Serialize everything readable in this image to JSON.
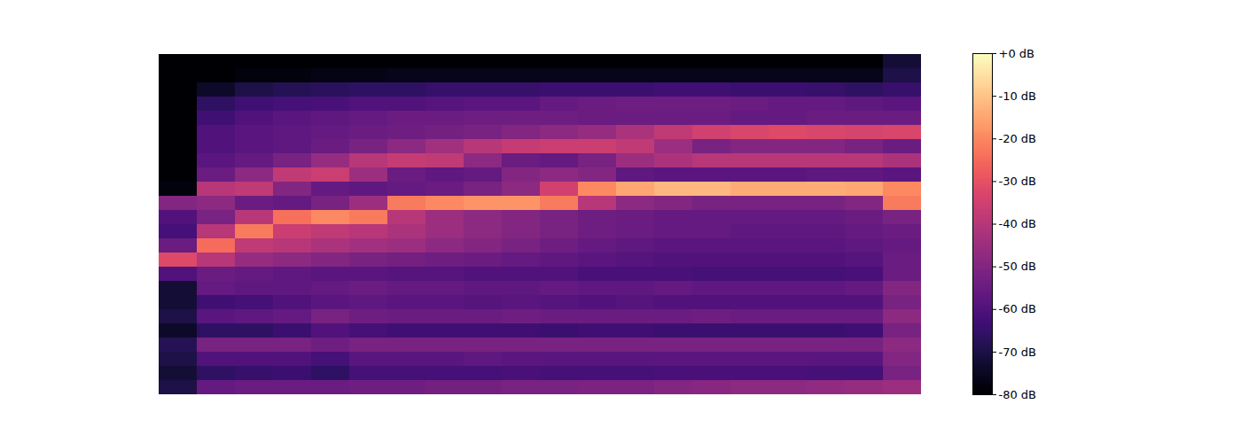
{
  "chart_data": {
    "type": "heatmap",
    "color": "magma",
    "tick_labels": false,
    "colorbar": {
      "range": [
        -80,
        0
      ],
      "ticks": [
        {
          "value": 0,
          "label": "+0 dB"
        },
        {
          "value": -10,
          "label": "-10 dB"
        },
        {
          "value": -20,
          "label": "-20 dB"
        },
        {
          "value": -30,
          "label": "-30 dB"
        },
        {
          "value": -40,
          "label": "-40 dB"
        },
        {
          "value": -50,
          "label": "-50 dB"
        },
        {
          "value": -60,
          "label": "-60 dB"
        },
        {
          "value": -70,
          "label": "-70 dB"
        },
        {
          "value": -80,
          "label": "-80 dB"
        }
      ]
    },
    "cells": [
      [
        -80,
        -80,
        -80,
        -80,
        -80,
        -80,
        -80,
        -80,
        -80,
        -80,
        -80,
        -80,
        -80,
        -80,
        -80,
        -80,
        -80,
        -80,
        -80,
        -72
      ],
      [
        -80,
        -80,
        -78,
        -78,
        -77,
        -77,
        -76,
        -76,
        -76,
        -76,
        -76,
        -76,
        -76,
        -76,
        -76,
        -76,
        -76,
        -76,
        -76,
        -70
      ],
      [
        -80,
        -74,
        -70,
        -68,
        -67,
        -66,
        -66,
        -65,
        -65,
        -65,
        -64,
        -64,
        -64,
        -63,
        -63,
        -64,
        -64,
        -65,
        -66,
        -65
      ],
      [
        -80,
        -66,
        -63,
        -62,
        -61,
        -60,
        -60,
        -59,
        -58,
        -58,
        -56,
        -55,
        -54,
        -54,
        -54,
        -55,
        -56,
        -56,
        -57,
        -58
      ],
      [
        -80,
        -63,
        -60,
        -58,
        -57,
        -56,
        -55,
        -55,
        -54,
        -54,
        -54,
        -55,
        -55,
        -55,
        -55,
        -56,
        -56,
        -55,
        -55,
        -55
      ],
      [
        -80,
        -60,
        -58,
        -57,
        -56,
        -55,
        -54,
        -53,
        -52,
        -50,
        -48,
        -46,
        -42,
        -38,
        -35,
        -33,
        -32,
        -33,
        -34,
        -33
      ],
      [
        -80,
        -60,
        -58,
        -57,
        -55,
        -52,
        -48,
        -44,
        -40,
        -37,
        -36,
        -36,
        -38,
        -45,
        -52,
        -50,
        -50,
        -50,
        -52,
        -55
      ],
      [
        -80,
        -58,
        -56,
        -52,
        -46,
        -40,
        -37,
        -38,
        -48,
        -55,
        -56,
        -52,
        -45,
        -42,
        -40,
        -40,
        -40,
        -40,
        -40,
        -42
      ],
      [
        -80,
        -55,
        -48,
        -38,
        -36,
        -45,
        -55,
        -57,
        -56,
        -50,
        -48,
        -50,
        -57,
        -58,
        -58,
        -58,
        -58,
        -57,
        -57,
        -58
      ],
      [
        -78,
        -40,
        -38,
        -50,
        -56,
        -57,
        -56,
        -55,
        -52,
        -48,
        -35,
        -20,
        -15,
        -12,
        -12,
        -14,
        -14,
        -14,
        -15,
        -20
      ],
      [
        -50,
        -48,
        -55,
        -56,
        -52,
        -45,
        -22,
        -20,
        -18,
        -18,
        -22,
        -40,
        -48,
        -50,
        -52,
        -52,
        -52,
        -52,
        -50,
        -22
      ],
      [
        -60,
        -52,
        -40,
        -24,
        -20,
        -22,
        -40,
        -45,
        -48,
        -50,
        -52,
        -54,
        -55,
        -56,
        -56,
        -56,
        -56,
        -56,
        -55,
        -52
      ],
      [
        -62,
        -40,
        -22,
        -36,
        -38,
        -40,
        -42,
        -45,
        -48,
        -50,
        -52,
        -54,
        -55,
        -56,
        -56,
        -57,
        -57,
        -57,
        -56,
        -55
      ],
      [
        -55,
        -25,
        -38,
        -40,
        -42,
        -44,
        -45,
        -48,
        -50,
        -52,
        -54,
        -56,
        -57,
        -58,
        -58,
        -58,
        -58,
        -58,
        -57,
        -56
      ],
      [
        -32,
        -40,
        -46,
        -48,
        -50,
        -52,
        -53,
        -54,
        -55,
        -56,
        -57,
        -58,
        -59,
        -60,
        -60,
        -60,
        -60,
        -60,
        -59,
        -55
      ],
      [
        -60,
        -55,
        -56,
        -57,
        -58,
        -58,
        -59,
        -59,
        -60,
        -60,
        -60,
        -61,
        -61,
        -61,
        -62,
        -62,
        -62,
        -62,
        -61,
        -55
      ],
      [
        -72,
        -56,
        -57,
        -57,
        -56,
        -55,
        -56,
        -56,
        -57,
        -57,
        -56,
        -57,
        -57,
        -56,
        -57,
        -57,
        -57,
        -57,
        -56,
        -50
      ],
      [
        -72,
        -63,
        -62,
        -60,
        -58,
        -57,
        -58,
        -58,
        -59,
        -58,
        -59,
        -60,
        -59,
        -60,
        -60,
        -60,
        -60,
        -60,
        -60,
        -52
      ],
      [
        -70,
        -58,
        -57,
        -56,
        -52,
        -54,
        -55,
        -55,
        -55,
        -54,
        -55,
        -55,
        -55,
        -55,
        -54,
        -55,
        -55,
        -55,
        -55,
        -48
      ],
      [
        -74,
        -66,
        -66,
        -64,
        -60,
        -62,
        -63,
        -63,
        -63,
        -63,
        -64,
        -63,
        -63,
        -64,
        -64,
        -64,
        -64,
        -64,
        -63,
        -52
      ],
      [
        -68,
        -52,
        -52,
        -52,
        -54,
        -52,
        -52,
        -52,
        -52,
        -52,
        -52,
        -52,
        -52,
        -52,
        -52,
        -52,
        -52,
        -52,
        -52,
        -48
      ],
      [
        -70,
        -60,
        -60,
        -60,
        -62,
        -58,
        -58,
        -58,
        -57,
        -58,
        -58,
        -58,
        -58,
        -58,
        -58,
        -58,
        -58,
        -58,
        -58,
        -50
      ],
      [
        -72,
        -66,
        -65,
        -64,
        -66,
        -62,
        -62,
        -62,
        -62,
        -61,
        -62,
        -62,
        -62,
        -61,
        -61,
        -61,
        -61,
        -62,
        -62,
        -52
      ],
      [
        -70,
        -56,
        -55,
        -55,
        -55,
        -54,
        -54,
        -53,
        -53,
        -52,
        -52,
        -51,
        -51,
        -50,
        -49,
        -48,
        -48,
        -47,
        -46,
        -45
      ]
    ]
  }
}
